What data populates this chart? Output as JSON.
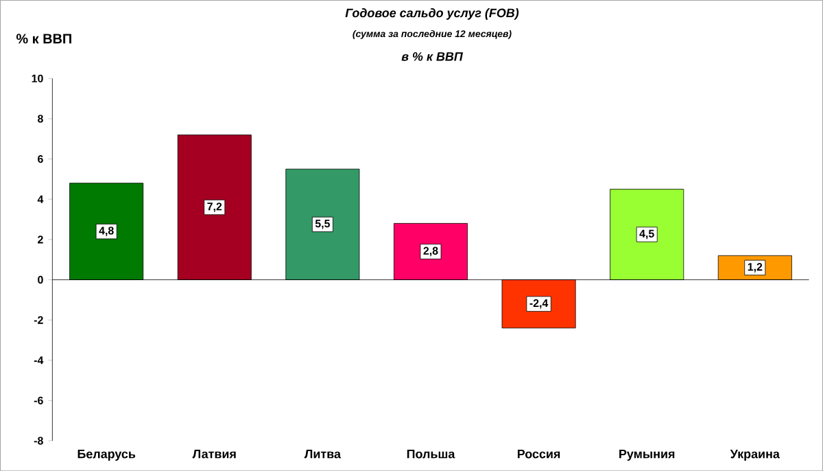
{
  "chart_data": {
    "type": "bar",
    "title": "Годовое сальдо услуг (FOB)",
    "subtitle": "(сумма за последние 12 месяцев)",
    "ylabel": "% к ВВП",
    "annotations": [
      "в % к ВВП"
    ],
    "categories": [
      "Беларусь",
      "Латвия",
      "Литва",
      "Польша",
      "Россия",
      "Румыния",
      "Украина"
    ],
    "values": [
      4.8,
      7.2,
      5.5,
      2.8,
      -2.4,
      4.5,
      1.2
    ],
    "colors": [
      "#007a00",
      "#a50021",
      "#339966",
      "#ff0066",
      "#ff3300",
      "#99ff33",
      "#ff9900"
    ],
    "value_labels": [
      "4,8",
      "7,2",
      "5,5",
      "2,8",
      "-2,4",
      "4,5",
      "1,2"
    ],
    "ylim": [
      -8,
      10
    ],
    "yticks": [
      -8,
      -6,
      -4,
      -2,
      0,
      2,
      4,
      6,
      8,
      10
    ]
  }
}
